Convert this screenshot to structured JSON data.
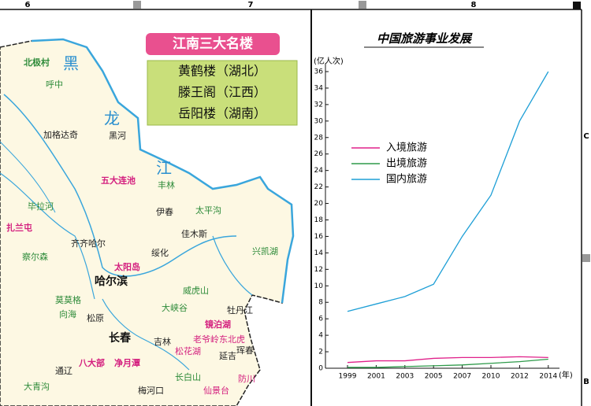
{
  "ruler": {
    "top": [
      "6",
      "7",
      "8"
    ],
    "right": [
      "C",
      "B"
    ]
  },
  "feature_box": {
    "title": "江南三大名楼",
    "items": [
      "黄鹤楼（湖北）",
      "滕王阁（江西）",
      "岳阳楼（湖南）"
    ]
  },
  "map": {
    "labels": [
      "北极村",
      "呼中",
      "黑",
      "龙",
      "江",
      "加格达奇",
      "黑河",
      "五大连池",
      "丰林",
      "伊春",
      "太平沟",
      "毕拉河",
      "扎兰屯",
      "齐齐哈尔",
      "绥化",
      "佳木斯",
      "兴凯湖",
      "哈尔滨",
      "太阳岛",
      "镜泊湖",
      "牡丹江",
      "长春",
      "吉林",
      "延吉",
      "珲春",
      "松原",
      "通辽",
      "梅河口",
      "长白山",
      "仙景台",
      "防川",
      "八大部",
      "净月潭",
      "大青沟",
      "莫莫格",
      "向海",
      "察尔森",
      "威虎山",
      "大峡谷",
      "松花湖",
      "老爷岭东北虎"
    ]
  },
  "chart_data": {
    "type": "line",
    "title": "中国旅游事业发展",
    "y_label": "(亿人次)",
    "x_label": "(年)",
    "categories": [
      "1999",
      "2001",
      "2003",
      "2005",
      "2007",
      "2010",
      "2012",
      "2014"
    ],
    "series": [
      {
        "name": "入境旅游",
        "color": "#e0218a",
        "values": [
          0.7,
          0.9,
          0.9,
          1.2,
          1.3,
          1.3,
          1.4,
          1.3
        ]
      },
      {
        "name": "出境旅游",
        "color": "#2e9a4a",
        "values": [
          0.1,
          0.1,
          0.2,
          0.3,
          0.4,
          0.6,
          0.8,
          1.1
        ]
      },
      {
        "name": "国内旅游",
        "color": "#1e9fd6",
        "values": [
          6.9,
          7.8,
          8.7,
          10.2,
          16,
          21,
          30,
          36
        ]
      }
    ],
    "ylim": [
      0,
      36
    ],
    "yticks": [
      0,
      2,
      4,
      6,
      8,
      10,
      12,
      14,
      16,
      18,
      20,
      22,
      24,
      26,
      28,
      30,
      32,
      34,
      36
    ]
  }
}
